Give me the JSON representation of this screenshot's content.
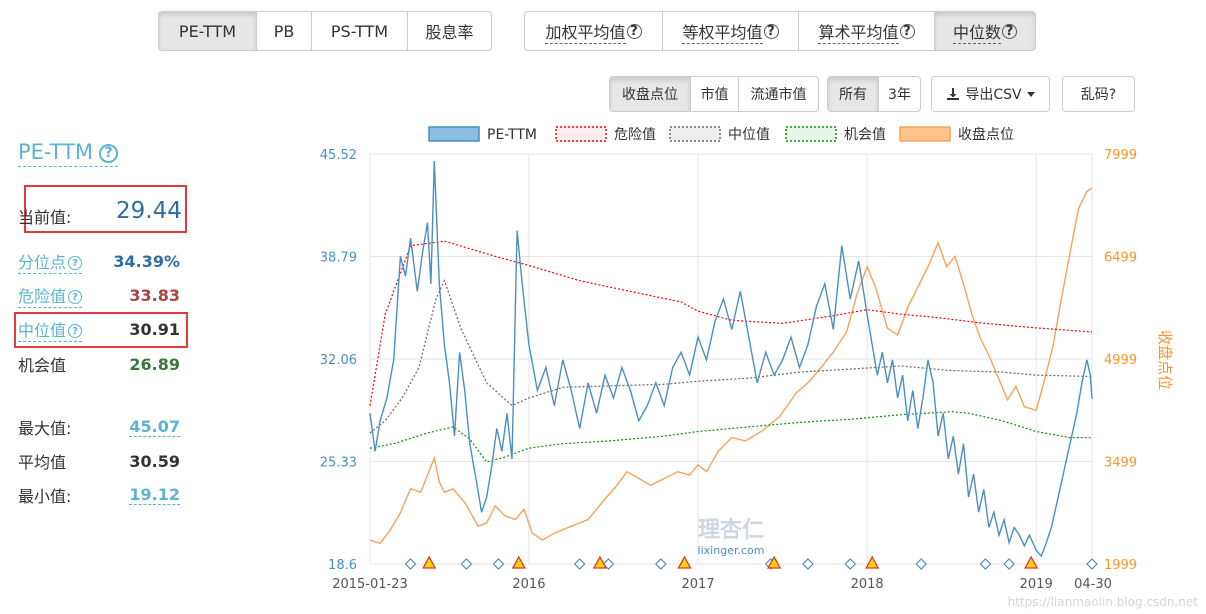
{
  "top_tabs_left": [
    {
      "label": "PE-TTM",
      "active": true
    },
    {
      "label": "PB",
      "active": false
    },
    {
      "label": "PS-TTM",
      "active": false
    },
    {
      "label": "股息率",
      "active": false
    }
  ],
  "top_tabs_right": [
    {
      "label": "加权平均值",
      "active": false
    },
    {
      "label": "等权平均值",
      "active": false
    },
    {
      "label": "算术平均值",
      "active": false
    },
    {
      "label": "中位数",
      "active": true
    }
  ],
  "tabs_sub_price": [
    {
      "label": "收盘点位",
      "active": true
    },
    {
      "label": "市值",
      "active": false
    },
    {
      "label": "流通市值",
      "active": false
    }
  ],
  "tabs_sub_range": [
    {
      "label": "所有",
      "active": true
    },
    {
      "label": "3年",
      "active": false
    }
  ],
  "export_button": {
    "label": "导出CSV"
  },
  "garbled_button": {
    "label": "乱码?"
  },
  "metric": {
    "title": "PE-TTM",
    "current_label": "当前值:",
    "current_value": "29.44",
    "rows": [
      {
        "label": "分位点",
        "value": "34.39%",
        "color": "#2e6da4",
        "link": true
      },
      {
        "label": "危险值",
        "value": "33.83",
        "color": "#a94442",
        "link": true
      },
      {
        "label": "中位值",
        "value": "30.91",
        "color": "#333333",
        "link": true
      },
      {
        "label": "机会值",
        "value": "26.89",
        "color": "#3c763d",
        "link": false
      },
      {
        "label": "最大值:",
        "value": "45.07",
        "color": "#5bb4cf",
        "link": false
      },
      {
        "label": "平均值",
        "value": "30.59",
        "color": "#333333",
        "link": false
      },
      {
        "label": "最小值:",
        "value": "19.12",
        "color": "#5bb4cf",
        "link": false
      }
    ]
  },
  "watermark": {
    "brand": "理杏仁",
    "site": "lixinger.com"
  },
  "footer_watermark": "https://lianmaolin.blog.csdn.net",
  "chart_data": {
    "type": "line",
    "title": "",
    "xlabel": "",
    "ylabel": "",
    "y2label": "收盘点位",
    "x_tick_labels": [
      "2015-01-23",
      "2016",
      "2017",
      "2018",
      "2019",
      "04-30"
    ],
    "ylim": [
      18.6,
      45.52
    ],
    "y_ticks": [
      "45.52",
      "38.79",
      "32.06",
      "25.33",
      "18.6"
    ],
    "y2lim": [
      1999,
      7999
    ],
    "y2_ticks": [
      "7999",
      "6499",
      "4999",
      "3499",
      "1999"
    ],
    "legend_position": "top",
    "grid": true,
    "colors": {
      "pe": "#4a8fc0",
      "danger": "#ff0000",
      "median": "#666666",
      "chance": "#009900",
      "close": "#f7a35c"
    },
    "series": [
      {
        "name": "PE-TTM",
        "axis": "left",
        "style": "solid",
        "points": [
          [
            2015.06,
            28.5
          ],
          [
            2015.09,
            26.0
          ],
          [
            2015.12,
            28.0
          ],
          [
            2015.16,
            29.5
          ],
          [
            2015.2,
            32.0
          ],
          [
            2015.24,
            38.8
          ],
          [
            2015.27,
            37.5
          ],
          [
            2015.3,
            40.0
          ],
          [
            2015.34,
            36.5
          ],
          [
            2015.37,
            39.0
          ],
          [
            2015.4,
            41.0
          ],
          [
            2015.42,
            37.0
          ],
          [
            2015.44,
            45.07
          ],
          [
            2015.47,
            37.0
          ],
          [
            2015.5,
            33.0
          ],
          [
            2015.53,
            30.5
          ],
          [
            2015.56,
            27.0
          ],
          [
            2015.59,
            32.5
          ],
          [
            2015.62,
            30.0
          ],
          [
            2015.65,
            26.5
          ],
          [
            2015.69,
            24.0
          ],
          [
            2015.72,
            22.0
          ],
          [
            2015.75,
            23.0
          ],
          [
            2015.78,
            25.0
          ],
          [
            2015.81,
            27.5
          ],
          [
            2015.84,
            26.0
          ],
          [
            2015.87,
            28.5
          ],
          [
            2015.9,
            25.5
          ],
          [
            2015.93,
            40.5
          ],
          [
            2015.96,
            37.0
          ],
          [
            2016.0,
            33.0
          ],
          [
            2016.05,
            30.0
          ],
          [
            2016.1,
            31.5
          ],
          [
            2016.15,
            29.0
          ],
          [
            2016.2,
            32.0
          ],
          [
            2016.25,
            30.0
          ],
          [
            2016.3,
            27.5
          ],
          [
            2016.35,
            30.5
          ],
          [
            2016.4,
            28.5
          ],
          [
            2016.45,
            31.0
          ],
          [
            2016.5,
            29.5
          ],
          [
            2016.55,
            31.5
          ],
          [
            2016.6,
            30.0
          ],
          [
            2016.65,
            28.0
          ],
          [
            2016.7,
            29.0
          ],
          [
            2016.75,
            30.5
          ],
          [
            2016.8,
            29.0
          ],
          [
            2016.85,
            31.5
          ],
          [
            2016.9,
            32.5
          ],
          [
            2016.95,
            31.0
          ],
          [
            2017.0,
            33.5
          ],
          [
            2017.05,
            32.0
          ],
          [
            2017.1,
            34.5
          ],
          [
            2017.15,
            36.0
          ],
          [
            2017.2,
            34.0
          ],
          [
            2017.25,
            36.5
          ],
          [
            2017.3,
            33.5
          ],
          [
            2017.35,
            30.5
          ],
          [
            2017.4,
            32.5
          ],
          [
            2017.45,
            31.0
          ],
          [
            2017.5,
            32.0
          ],
          [
            2017.55,
            33.5
          ],
          [
            2017.6,
            31.5
          ],
          [
            2017.65,
            33.0
          ],
          [
            2017.7,
            35.5
          ],
          [
            2017.75,
            37.0
          ],
          [
            2017.8,
            34.0
          ],
          [
            2017.85,
            39.5
          ],
          [
            2017.9,
            36.0
          ],
          [
            2017.95,
            38.5
          ],
          [
            2018.0,
            35.0
          ],
          [
            2018.03,
            33.0
          ],
          [
            2018.06,
            31.0
          ],
          [
            2018.09,
            32.5
          ],
          [
            2018.12,
            30.5
          ],
          [
            2018.15,
            32.0
          ],
          [
            2018.18,
            29.5
          ],
          [
            2018.21,
            31.0
          ],
          [
            2018.24,
            28.0
          ],
          [
            2018.27,
            30.0
          ],
          [
            2018.3,
            27.5
          ],
          [
            2018.33,
            29.5
          ],
          [
            2018.36,
            32.0
          ],
          [
            2018.39,
            30.5
          ],
          [
            2018.42,
            27.0
          ],
          [
            2018.45,
            28.5
          ],
          [
            2018.48,
            25.5
          ],
          [
            2018.51,
            27.0
          ],
          [
            2018.54,
            24.5
          ],
          [
            2018.57,
            26.5
          ],
          [
            2018.6,
            23.0
          ],
          [
            2018.63,
            24.5
          ],
          [
            2018.66,
            22.0
          ],
          [
            2018.69,
            23.5
          ],
          [
            2018.72,
            21.0
          ],
          [
            2018.75,
            22.0
          ],
          [
            2018.78,
            20.5
          ],
          [
            2018.81,
            21.5
          ],
          [
            2018.84,
            20.0
          ],
          [
            2018.87,
            21.0
          ],
          [
            2018.9,
            20.5
          ],
          [
            2018.93,
            19.8
          ],
          [
            2018.96,
            20.5
          ],
          [
            2019.0,
            19.5
          ],
          [
            2019.03,
            19.12
          ],
          [
            2019.06,
            20.0
          ],
          [
            2019.09,
            21.0
          ],
          [
            2019.12,
            22.5
          ],
          [
            2019.15,
            24.0
          ],
          [
            2019.18,
            25.5
          ],
          [
            2019.21,
            27.0
          ],
          [
            2019.24,
            28.5
          ],
          [
            2019.27,
            30.5
          ],
          [
            2019.3,
            32.0
          ],
          [
            2019.32,
            31.0
          ],
          [
            2019.33,
            29.44
          ]
        ]
      },
      {
        "name": "危险值",
        "axis": "left",
        "style": "dashed",
        "points": [
          [
            2015.06,
            29.0
          ],
          [
            2015.15,
            35.0
          ],
          [
            2015.3,
            39.5
          ],
          [
            2015.5,
            39.8
          ],
          [
            2015.8,
            38.8
          ],
          [
            2016.0,
            38.2
          ],
          [
            2016.3,
            37.2
          ],
          [
            2016.6,
            36.5
          ],
          [
            2016.9,
            35.8
          ],
          [
            2017.0,
            35.2
          ],
          [
            2017.2,
            34.6
          ],
          [
            2017.5,
            34.4
          ],
          [
            2017.8,
            34.9
          ],
          [
            2018.0,
            35.3
          ],
          [
            2018.2,
            35.0
          ],
          [
            2018.4,
            34.8
          ],
          [
            2018.7,
            34.4
          ],
          [
            2019.0,
            34.1
          ],
          [
            2019.33,
            33.83
          ]
        ]
      },
      {
        "name": "中位值",
        "axis": "left",
        "style": "dashed",
        "points": [
          [
            2015.06,
            27.2
          ],
          [
            2015.15,
            28.0
          ],
          [
            2015.25,
            29.5
          ],
          [
            2015.35,
            31.5
          ],
          [
            2015.45,
            36.0
          ],
          [
            2015.5,
            37.2
          ],
          [
            2015.6,
            34.0
          ],
          [
            2015.75,
            30.5
          ],
          [
            2015.9,
            29.0
          ],
          [
            2016.0,
            29.5
          ],
          [
            2016.2,
            30.2
          ],
          [
            2016.5,
            30.3
          ],
          [
            2016.8,
            30.4
          ],
          [
            2017.0,
            30.6
          ],
          [
            2017.3,
            30.8
          ],
          [
            2017.6,
            31.2
          ],
          [
            2017.9,
            31.4
          ],
          [
            2018.2,
            31.6
          ],
          [
            2018.5,
            31.3
          ],
          [
            2018.8,
            31.2
          ],
          [
            2019.0,
            31.0
          ],
          [
            2019.33,
            30.91
          ]
        ]
      },
      {
        "name": "机会值",
        "axis": "left",
        "style": "dashed",
        "points": [
          [
            2015.06,
            26.2
          ],
          [
            2015.2,
            26.5
          ],
          [
            2015.4,
            27.2
          ],
          [
            2015.55,
            27.6
          ],
          [
            2015.65,
            26.8
          ],
          [
            2015.75,
            25.3
          ],
          [
            2015.85,
            25.6
          ],
          [
            2016.0,
            26.2
          ],
          [
            2016.2,
            26.5
          ],
          [
            2016.5,
            26.7
          ],
          [
            2016.8,
            27.0
          ],
          [
            2017.0,
            27.3
          ],
          [
            2017.3,
            27.6
          ],
          [
            2017.6,
            27.9
          ],
          [
            2017.9,
            28.1
          ],
          [
            2018.2,
            28.4
          ],
          [
            2018.5,
            28.6
          ],
          [
            2018.6,
            28.5
          ],
          [
            2018.8,
            28.0
          ],
          [
            2019.0,
            27.3
          ],
          [
            2019.2,
            26.9
          ],
          [
            2019.33,
            26.89
          ]
        ]
      },
      {
        "name": "收盘点位",
        "axis": "right",
        "style": "solid",
        "points": [
          [
            2015.06,
            2350
          ],
          [
            2015.12,
            2300
          ],
          [
            2015.18,
            2500
          ],
          [
            2015.24,
            2750
          ],
          [
            2015.3,
            3100
          ],
          [
            2015.36,
            3050
          ],
          [
            2015.4,
            3300
          ],
          [
            2015.44,
            3550
          ],
          [
            2015.47,
            3200
          ],
          [
            2015.5,
            3050
          ],
          [
            2015.55,
            3100
          ],
          [
            2015.62,
            2900
          ],
          [
            2015.7,
            2550
          ],
          [
            2015.75,
            2600
          ],
          [
            2015.8,
            2850
          ],
          [
            2015.86,
            2700
          ],
          [
            2015.92,
            2650
          ],
          [
            2015.97,
            2800
          ],
          [
            2016.02,
            2450
          ],
          [
            2016.08,
            2350
          ],
          [
            2016.15,
            2450
          ],
          [
            2016.25,
            2550
          ],
          [
            2016.35,
            2650
          ],
          [
            2016.45,
            2950
          ],
          [
            2016.52,
            3150
          ],
          [
            2016.58,
            3350
          ],
          [
            2016.65,
            3250
          ],
          [
            2016.72,
            3150
          ],
          [
            2016.8,
            3250
          ],
          [
            2016.88,
            3350
          ],
          [
            2016.95,
            3300
          ],
          [
            2017.0,
            3450
          ],
          [
            2017.05,
            3350
          ],
          [
            2017.12,
            3650
          ],
          [
            2017.2,
            3850
          ],
          [
            2017.28,
            3800
          ],
          [
            2017.38,
            3950
          ],
          [
            2017.48,
            4150
          ],
          [
            2017.58,
            4500
          ],
          [
            2017.65,
            4650
          ],
          [
            2017.72,
            4850
          ],
          [
            2017.8,
            5100
          ],
          [
            2017.88,
            5400
          ],
          [
            2017.94,
            5950
          ],
          [
            2018.0,
            6350
          ],
          [
            2018.05,
            6050
          ],
          [
            2018.12,
            5450
          ],
          [
            2018.18,
            5350
          ],
          [
            2018.24,
            5750
          ],
          [
            2018.3,
            6050
          ],
          [
            2018.36,
            6350
          ],
          [
            2018.42,
            6700
          ],
          [
            2018.47,
            6350
          ],
          [
            2018.52,
            6500
          ],
          [
            2018.57,
            6100
          ],
          [
            2018.62,
            5650
          ],
          [
            2018.67,
            5300
          ],
          [
            2018.72,
            5050
          ],
          [
            2018.78,
            4700
          ],
          [
            2018.83,
            4400
          ],
          [
            2018.88,
            4600
          ],
          [
            2018.93,
            4300
          ],
          [
            2019.0,
            4250
          ],
          [
            2019.05,
            4700
          ],
          [
            2019.1,
            5200
          ],
          [
            2019.15,
            5900
          ],
          [
            2019.2,
            6550
          ],
          [
            2019.25,
            7200
          ],
          [
            2019.3,
            7450
          ],
          [
            2019.33,
            7500
          ]
        ]
      }
    ],
    "event_markers": {
      "diamonds_x": [
        2015.3,
        2015.63,
        2015.82,
        2016.3,
        2016.47,
        2016.78,
        2017.43,
        2017.65,
        2017.9,
        2018.32,
        2018.7,
        2018.84,
        2019.33
      ],
      "triangles_x": [
        2015.41,
        2015.94,
        2016.42,
        2016.92,
        2017.45,
        2018.03,
        2018.97
      ]
    }
  }
}
